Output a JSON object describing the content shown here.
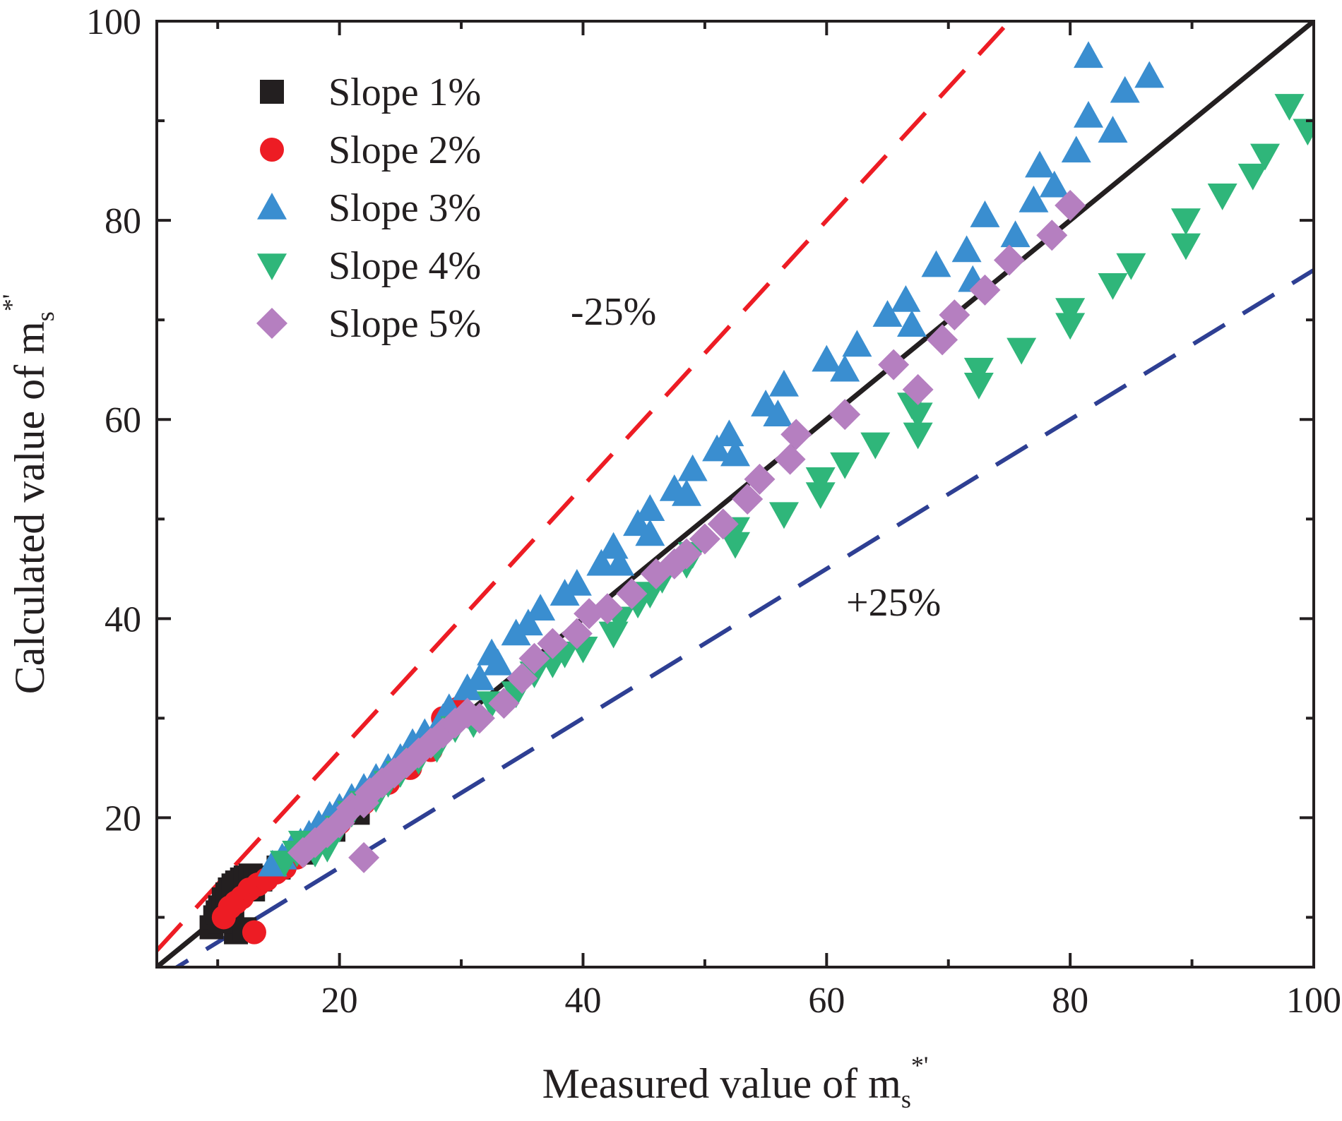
{
  "chart_data": {
    "type": "scatter",
    "title": "",
    "xlabel": {
      "main": "Measured value of m",
      "sub": "s",
      "sup": "*'"
    },
    "ylabel": {
      "main": "Calculated value of m",
      "sub": "s",
      "sup": "*'"
    },
    "xlim": [
      5,
      100
    ],
    "ylim": [
      5,
      100
    ],
    "xticks": [
      20,
      40,
      60,
      80,
      100
    ],
    "yticks": [
      20,
      40,
      60,
      80,
      100
    ],
    "xtick_labels": [
      "20",
      "40",
      "60",
      "80",
      "100"
    ],
    "ytick_labels": [
      "20",
      "40",
      "60",
      "80",
      "100"
    ],
    "legend_position": "top-left",
    "reference_lines": [
      {
        "name": "1:1 line",
        "color": "#231f20",
        "style": "solid",
        "slope": 1.0
      },
      {
        "name": "-25%",
        "color": "#ed1c24",
        "style": "dashed",
        "slope": 1.333
      },
      {
        "name": "+25%",
        "color": "#2e3f93",
        "style": "dashed",
        "slope": 0.75
      }
    ],
    "annotations": [
      {
        "text": "-25%",
        "x": 42.5,
        "y": 69.5
      },
      {
        "text": "+25%",
        "x": 65.5,
        "y": 40.3
      }
    ],
    "series": [
      {
        "name": "Slope 1%",
        "marker": "square",
        "color": "#231f20",
        "points": [
          [
            9.5,
            9
          ],
          [
            9.8,
            10
          ],
          [
            10,
            10.5
          ],
          [
            10.2,
            11
          ],
          [
            10.5,
            11.8
          ],
          [
            10.8,
            12.3
          ],
          [
            11,
            12.8
          ],
          [
            11.3,
            13.2
          ],
          [
            11.6,
            13.5
          ],
          [
            12,
            13.8
          ],
          [
            12.3,
            14
          ],
          [
            12.7,
            14.2
          ],
          [
            13.1,
            14
          ],
          [
            13.5,
            13.8
          ],
          [
            11.5,
            8.5
          ],
          [
            12.2,
            8.8
          ],
          [
            12.9,
            12.8
          ],
          [
            15,
            15
          ],
          [
            17,
            16.5
          ],
          [
            19.5,
            18.8
          ],
          [
            21.5,
            20.5
          ],
          [
            10.2,
            9.6
          ],
          [
            11.2,
            10.4
          ]
        ]
      },
      {
        "name": "Slope 2%",
        "marker": "circle",
        "color": "#ed1c24",
        "points": [
          [
            10.5,
            10
          ],
          [
            11,
            11
          ],
          [
            11.5,
            11.5
          ],
          [
            12,
            12
          ],
          [
            12.6,
            12.8
          ],
          [
            13.3,
            13.3
          ],
          [
            14,
            13.8
          ],
          [
            14.8,
            14.5
          ],
          [
            15.5,
            15
          ],
          [
            16.5,
            16
          ],
          [
            13,
            8.5
          ],
          [
            20,
            19.5
          ],
          [
            22,
            21.5
          ],
          [
            24,
            23.5
          ],
          [
            25.8,
            25
          ],
          [
            27.5,
            26.8
          ],
          [
            29.8,
            31
          ],
          [
            28.5,
            30
          ]
        ]
      },
      {
        "name": "Slope 3%",
        "marker": "triangle-up",
        "color": "#3a8ed0",
        "points": [
          [
            14.5,
            15.3
          ],
          [
            15.3,
            16
          ],
          [
            16,
            16.8
          ],
          [
            16.8,
            17.5
          ],
          [
            17.5,
            18.3
          ],
          [
            18.3,
            19.3
          ],
          [
            19.2,
            20.2
          ],
          [
            20,
            21
          ],
          [
            21,
            22
          ],
          [
            22,
            23
          ],
          [
            23,
            24
          ],
          [
            24,
            25
          ],
          [
            25,
            26
          ],
          [
            26,
            27.5
          ],
          [
            27,
            28.5
          ],
          [
            28.5,
            30
          ],
          [
            29,
            31
          ],
          [
            30.5,
            33
          ],
          [
            31.5,
            34
          ],
          [
            33,
            35.5
          ],
          [
            32.5,
            36.5
          ],
          [
            34.5,
            38.5
          ],
          [
            35.5,
            39.5
          ],
          [
            36.5,
            41
          ],
          [
            38.5,
            42.5
          ],
          [
            39.5,
            43.5
          ],
          [
            41.5,
            45.5
          ],
          [
            42.5,
            47.2
          ],
          [
            43,
            45.5
          ],
          [
            44.5,
            49.5
          ],
          [
            45.5,
            51
          ],
          [
            45.5,
            48.5
          ],
          [
            47.5,
            53
          ],
          [
            48.5,
            52.5
          ],
          [
            49,
            55
          ],
          [
            51,
            57
          ],
          [
            52,
            58.5
          ],
          [
            52.5,
            56.5
          ],
          [
            55,
            61.5
          ],
          [
            56,
            60.5
          ],
          [
            56.5,
            63.5
          ],
          [
            60,
            66
          ],
          [
            61.5,
            65
          ],
          [
            62.5,
            67.5
          ],
          [
            65,
            70.5
          ],
          [
            66.5,
            72
          ],
          [
            67,
            69.5
          ],
          [
            69,
            75.5
          ],
          [
            71.5,
            77
          ],
          [
            72,
            74
          ],
          [
            73,
            80.5
          ],
          [
            75.5,
            78.5
          ],
          [
            77,
            82
          ],
          [
            77.5,
            85.5
          ],
          [
            78.7,
            83.5
          ],
          [
            80.5,
            87
          ],
          [
            81.5,
            90.5
          ],
          [
            81.5,
            96.5
          ],
          [
            83.5,
            89
          ],
          [
            84.5,
            93
          ],
          [
            86.5,
            94.5
          ]
        ]
      },
      {
        "name": "Slope 4%",
        "marker": "triangle-down",
        "color": "#2fb67a",
        "points": [
          [
            15.5,
            15.5
          ],
          [
            16.5,
            16.5
          ],
          [
            17,
            17.5
          ],
          [
            18,
            16.5
          ],
          [
            19,
            17
          ],
          [
            20,
            19
          ],
          [
            21,
            20.5
          ],
          [
            22,
            21.5
          ],
          [
            23,
            22
          ],
          [
            24,
            23.5
          ],
          [
            25,
            24.5
          ],
          [
            26.5,
            25.8
          ],
          [
            28,
            27
          ],
          [
            29.5,
            29
          ],
          [
            31,
            29.5
          ],
          [
            32.5,
            31.5
          ],
          [
            34.5,
            32.5
          ],
          [
            36,
            34.5
          ],
          [
            37.5,
            35.5
          ],
          [
            38.5,
            36.5
          ],
          [
            40,
            37
          ],
          [
            42.5,
            38.5
          ],
          [
            43,
            40
          ],
          [
            44.5,
            41.5
          ],
          [
            45.5,
            42.5
          ],
          [
            46.5,
            44
          ],
          [
            48.5,
            45.5
          ],
          [
            49,
            46.5
          ],
          [
            52.5,
            47.5
          ],
          [
            52.5,
            49
          ],
          [
            56.5,
            50.5
          ],
          [
            59.5,
            52.5
          ],
          [
            59.5,
            54
          ],
          [
            61.5,
            55.5
          ],
          [
            64,
            57.5
          ],
          [
            67.5,
            58.5
          ],
          [
            67.5,
            60.5
          ],
          [
            67,
            61.5
          ],
          [
            72.5,
            63.5
          ],
          [
            72.5,
            65
          ],
          [
            76,
            67
          ],
          [
            80,
            69.5
          ],
          [
            80,
            71
          ],
          [
            83.5,
            73.5
          ],
          [
            85,
            75.5
          ],
          [
            89.5,
            77.5
          ],
          [
            89.5,
            80
          ],
          [
            92.5,
            82.5
          ],
          [
            95,
            84.5
          ],
          [
            96,
            86.5
          ],
          [
            98,
            91.5
          ],
          [
            99.5,
            89
          ]
        ]
      },
      {
        "name": "Slope 5%",
        "marker": "diamond",
        "color": "#b57fc0",
        "points": [
          [
            17,
            16.5
          ],
          [
            18,
            17.5
          ],
          [
            19,
            18.5
          ],
          [
            20,
            19.5
          ],
          [
            21,
            21
          ],
          [
            22,
            21.5
          ],
          [
            22.5,
            22.5
          ],
          [
            23.5,
            23.5
          ],
          [
            24.5,
            24.5
          ],
          [
            25.5,
            25.5
          ],
          [
            26.5,
            26.5
          ],
          [
            27.5,
            27.5
          ],
          [
            28.5,
            28.5
          ],
          [
            29.5,
            29.5
          ],
          [
            22,
            16
          ],
          [
            30.5,
            30.5
          ],
          [
            31.5,
            30
          ],
          [
            33.5,
            31.5
          ],
          [
            35,
            34
          ],
          [
            36,
            36
          ],
          [
            37.5,
            37.5
          ],
          [
            39.5,
            38.5
          ],
          [
            40.5,
            40.5
          ],
          [
            42,
            41
          ],
          [
            44,
            42.5
          ],
          [
            46,
            44.5
          ],
          [
            47.5,
            45.5
          ],
          [
            48.5,
            46.5
          ],
          [
            50,
            48
          ],
          [
            51.5,
            49.5
          ],
          [
            53.5,
            52
          ],
          [
            54.5,
            54
          ],
          [
            57,
            56
          ],
          [
            57.5,
            58.5
          ],
          [
            61.5,
            60.5
          ],
          [
            65.5,
            65.5
          ],
          [
            67.5,
            63
          ],
          [
            69.5,
            68
          ],
          [
            70.5,
            70.5
          ],
          [
            73,
            73
          ],
          [
            75,
            76
          ],
          [
            78.5,
            78.5
          ],
          [
            80,
            81.5
          ]
        ]
      }
    ]
  }
}
